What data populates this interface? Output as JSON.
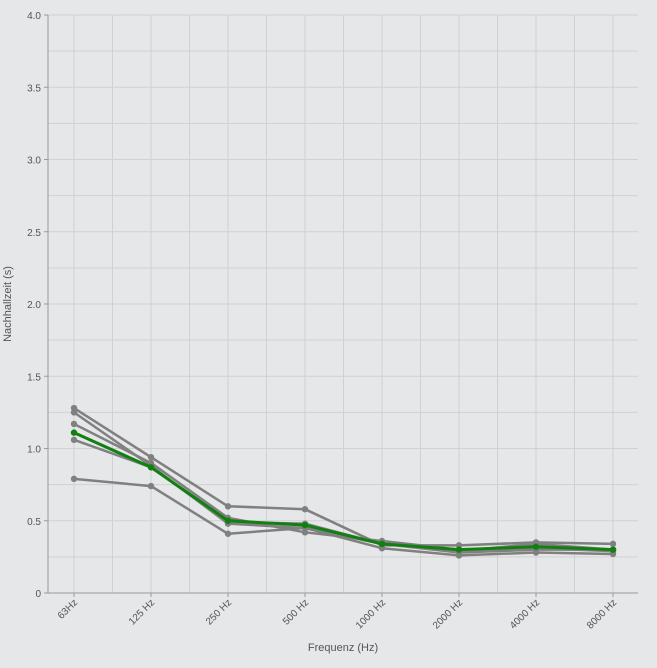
{
  "chart_data": {
    "type": "line",
    "title": "",
    "xlabel": "Frequenz (Hz)",
    "ylabel": "Nachhallzeit (s)",
    "categories": [
      "63Hz",
      "125 Hz",
      "250 Hz",
      "500 Hz",
      "1000 Hz",
      "2000 Hz",
      "4000 Hz",
      "8000 Hz"
    ],
    "ylim": [
      0,
      4
    ],
    "yticks": [
      "0",
      "0.5",
      "1.0",
      "1.5",
      "2.0",
      "2.5",
      "3.0",
      "3.5",
      "4.0"
    ],
    "grid": true,
    "legend": "none",
    "series": [
      {
        "color": "#808080",
        "values": [
          1.28,
          0.94,
          0.6,
          0.58,
          0.33,
          0.33,
          0.35,
          0.34
        ]
      },
      {
        "color": "#808080",
        "values": [
          1.25,
          0.88,
          0.48,
          0.45,
          0.34,
          0.29,
          0.34,
          0.3
        ]
      },
      {
        "color": "#808080",
        "values": [
          1.17,
          0.9,
          0.52,
          0.42,
          0.36,
          0.3,
          0.31,
          0.29
        ]
      },
      {
        "color": "#808080",
        "values": [
          1.06,
          0.87,
          0.49,
          0.48,
          0.34,
          0.28,
          0.3,
          0.3
        ]
      },
      {
        "color": "#808080",
        "values": [
          0.79,
          0.74,
          0.41,
          0.45,
          0.31,
          0.26,
          0.28,
          0.27
        ]
      },
      {
        "color": "#108010",
        "values": [
          1.11,
          0.87,
          0.5,
          0.47,
          0.34,
          0.3,
          0.32,
          0.3
        ]
      }
    ]
  }
}
